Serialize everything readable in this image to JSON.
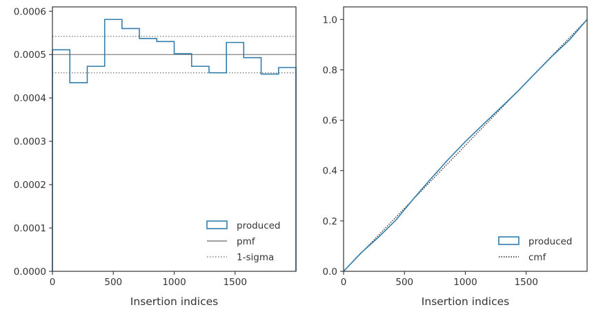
{
  "colors": {
    "histogram": "#2f7cad",
    "reference": "#808080",
    "cmf": "#222222",
    "axes": "#333333"
  },
  "chart_data": [
    {
      "type": "line",
      "xlabel": "Insertion indices",
      "ylabel": "",
      "xlim": [
        0,
        2000
      ],
      "ylim": [
        0,
        0.00061
      ],
      "xticks": [
        0,
        500,
        1000,
        1500
      ],
      "xtick_labels": [
        "0",
        "500",
        "1000",
        "1500"
      ],
      "yticks": [
        0,
        0.0001,
        0.0002,
        0.0003,
        0.0004,
        0.0005,
        0.0006
      ],
      "ytick_labels": [
        "0.0000",
        "0.0001",
        "0.0002",
        "0.0003",
        "0.0004",
        "0.0005",
        "0.0006"
      ],
      "legend_position": "lower-right",
      "series": [
        {
          "name": "produced",
          "style": "step-histogram",
          "bin_edges": [
            0,
            143,
            286,
            429,
            571,
            714,
            857,
            1000,
            1143,
            1286,
            1429,
            1571,
            1714,
            1857,
            2000
          ],
          "values": [
            0.000511,
            0.000435,
            0.000473,
            0.000581,
            0.00056,
            0.000537,
            0.00053,
            0.000502,
            0.000473,
            0.000458,
            0.000528,
            0.000493,
            0.000455,
            0.00047
          ]
        },
        {
          "name": "pmf",
          "style": "solid-hline",
          "y": 0.0005
        },
        {
          "name": "1-sigma",
          "style": "dotted-hline",
          "y": [
            0.000458,
            0.000542
          ]
        }
      ]
    },
    {
      "type": "line",
      "xlabel": "Insertion indices",
      "ylabel": "",
      "xlim": [
        0,
        2000
      ],
      "ylim": [
        0,
        1.05
      ],
      "xticks": [
        0,
        500,
        1000,
        1500
      ],
      "xtick_labels": [
        "0",
        "500",
        "1000",
        "1500"
      ],
      "yticks": [
        0,
        0.2,
        0.4,
        0.6,
        0.8,
        1.0
      ],
      "ytick_labels": [
        "0.0",
        "0.2",
        "0.4",
        "0.6",
        "0.8",
        "1.0"
      ],
      "legend_position": "lower-right",
      "series": [
        {
          "name": "produced",
          "style": "solid",
          "x": [
            0,
            143,
            286,
            429,
            571,
            714,
            857,
            1000,
            1143,
            1286,
            1429,
            1571,
            1714,
            1857,
            2000
          ],
          "y": [
            0,
            0.073,
            0.135,
            0.203,
            0.286,
            0.366,
            0.443,
            0.515,
            0.582,
            0.648,
            0.714,
            0.785,
            0.855,
            0.92,
            1.0
          ]
        },
        {
          "name": "cmf",
          "style": "dotted",
          "x": [
            0,
            2000
          ],
          "y": [
            0,
            1.0
          ]
        }
      ]
    }
  ]
}
